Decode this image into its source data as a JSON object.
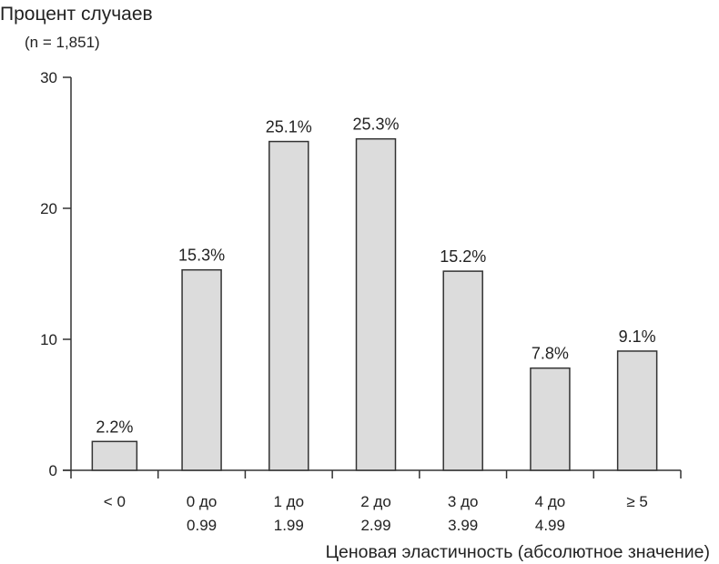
{
  "chart_data": {
    "type": "bar",
    "title": "Процент случаев",
    "subtitle": "(n = 1,851)",
    "xlabel": "Ценовая эластичность (абсолютное значение)",
    "ylabel": "Процент случаев",
    "ylim": [
      0,
      30
    ],
    "yticks": [
      0,
      10,
      20,
      30
    ],
    "ytick_labels": [
      "0",
      "10",
      "20",
      "30"
    ],
    "categories": [
      [
        "< 0"
      ],
      [
        "0 до",
        "0.99"
      ],
      [
        "1 до",
        "1.99"
      ],
      [
        "2 до",
        "2.99"
      ],
      [
        "3 до",
        "3.99"
      ],
      [
        "4 до",
        "4.99"
      ],
      [
        "≥ 5"
      ]
    ],
    "values": [
      2.2,
      15.3,
      25.1,
      25.3,
      15.2,
      7.8,
      9.1
    ],
    "data_labels": [
      "2.2%",
      "15.3%",
      "25.1%",
      "25.3%",
      "15.2%",
      "7.8%",
      "9.1%"
    ],
    "grid": false,
    "colors": {
      "bar_fill": "#dcdcdc",
      "bar_stroke": "#333333",
      "axis": "#333333"
    }
  }
}
